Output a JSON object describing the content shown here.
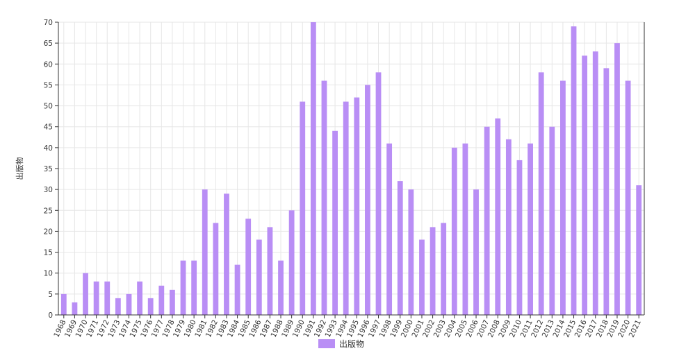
{
  "chart_data": {
    "type": "bar",
    "categories": [
      "1968",
      "1969",
      "1970",
      "1971",
      "1972",
      "1973",
      "1974",
      "1975",
      "1976",
      "1977",
      "1978",
      "1979",
      "1980",
      "1981",
      "1982",
      "1983",
      "1984",
      "1985",
      "1986",
      "1987",
      "1988",
      "1989",
      "1990",
      "1991",
      "1992",
      "1993",
      "1994",
      "1995",
      "1996",
      "1997",
      "1998",
      "1999",
      "2000",
      "2001",
      "2002",
      "2003",
      "2004",
      "2005",
      "2006",
      "2007",
      "2008",
      "2009",
      "2010",
      "2011",
      "2012",
      "2013",
      "2014",
      "2015",
      "2016",
      "2017",
      "2018",
      "2019",
      "2020",
      "2021"
    ],
    "series": [
      {
        "name": "出版物",
        "color": "#b98ef5",
        "values": [
          5,
          3,
          10,
          8,
          8,
          4,
          5,
          8,
          4,
          7,
          6,
          13,
          13,
          30,
          22,
          29,
          12,
          23,
          18,
          21,
          13,
          25,
          51,
          70,
          56,
          44,
          51,
          52,
          55,
          58,
          41,
          32,
          30,
          18,
          21,
          22,
          40,
          41,
          30,
          45,
          47,
          42,
          37,
          41,
          58,
          45,
          56,
          69,
          62,
          63,
          59,
          65,
          56,
          31
        ]
      }
    ],
    "ylabel": "出版物",
    "xlabel": "",
    "ylim": [
      0,
      70
    ],
    "yticks": [
      0,
      5,
      10,
      15,
      20,
      25,
      30,
      35,
      40,
      45,
      50,
      55,
      60,
      65,
      70
    ],
    "grid": true,
    "legend": "bottom-center"
  }
}
